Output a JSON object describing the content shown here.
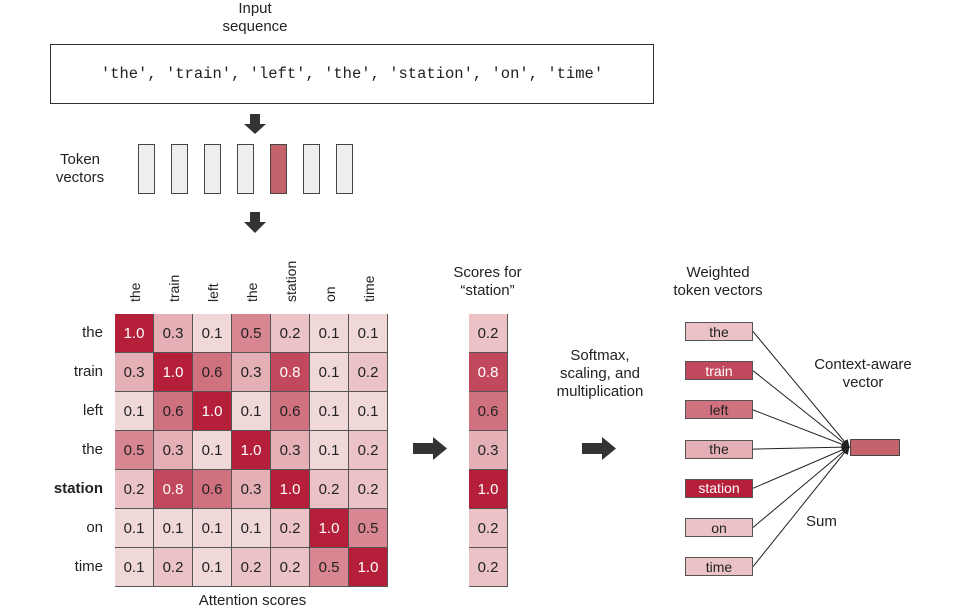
{
  "input": {
    "title_line1": "Input",
    "title_line2": "sequence",
    "sequence_text": "'the', 'train', 'left', 'the', 'station', 'on', 'time'"
  },
  "token_vectors": {
    "label_line1": "Token",
    "label_line2": "vectors",
    "count": 7,
    "highlight_index": 4
  },
  "matrix": {
    "caption": "Attention scores",
    "column_labels": [
      "the",
      "train",
      "left",
      "the",
      "station",
      "on",
      "time"
    ],
    "row_labels": [
      "the",
      "train",
      "left",
      "the",
      "station",
      "on",
      "time"
    ],
    "bold_row_index": 4,
    "values": [
      [
        "1.0",
        "0.3",
        "0.1",
        "0.5",
        "0.2",
        "0.1",
        "0.1"
      ],
      [
        "0.3",
        "1.0",
        "0.6",
        "0.3",
        "0.8",
        "0.1",
        "0.2"
      ],
      [
        "0.1",
        "0.6",
        "1.0",
        "0.1",
        "0.6",
        "0.1",
        "0.1"
      ],
      [
        "0.5",
        "0.3",
        "0.1",
        "1.0",
        "0.3",
        "0.1",
        "0.2"
      ],
      [
        "0.2",
        "0.8",
        "0.6",
        "0.3",
        "1.0",
        "0.2",
        "0.2"
      ],
      [
        "0.1",
        "0.1",
        "0.1",
        "0.1",
        "0.2",
        "1.0",
        "0.5"
      ],
      [
        "0.1",
        "0.2",
        "0.1",
        "0.2",
        "0.2",
        "0.5",
        "1.0"
      ]
    ]
  },
  "scores": {
    "title_line1": "Scores for",
    "title_line2": "“station”",
    "values": [
      "0.2",
      "0.8",
      "0.6",
      "0.3",
      "1.0",
      "0.2",
      "0.2"
    ]
  },
  "softmax": {
    "line1": "Softmax,",
    "line2": "scaling, and",
    "line3": "multiplication"
  },
  "weighted": {
    "title_line1": "Weighted",
    "title_line2": "token vectors",
    "labels": [
      "the",
      "train",
      "left",
      "the",
      "station",
      "on",
      "time"
    ],
    "weights": [
      0.2,
      0.8,
      0.6,
      0.3,
      1.0,
      0.2,
      0.2
    ]
  },
  "context": {
    "label_line1": "Context-aware",
    "label_line2": "vector",
    "sum_label": "Sum"
  },
  "colors": {
    "dark_red": "#b51f3a",
    "light_pink": "#f8ecea",
    "border": "#555555"
  }
}
